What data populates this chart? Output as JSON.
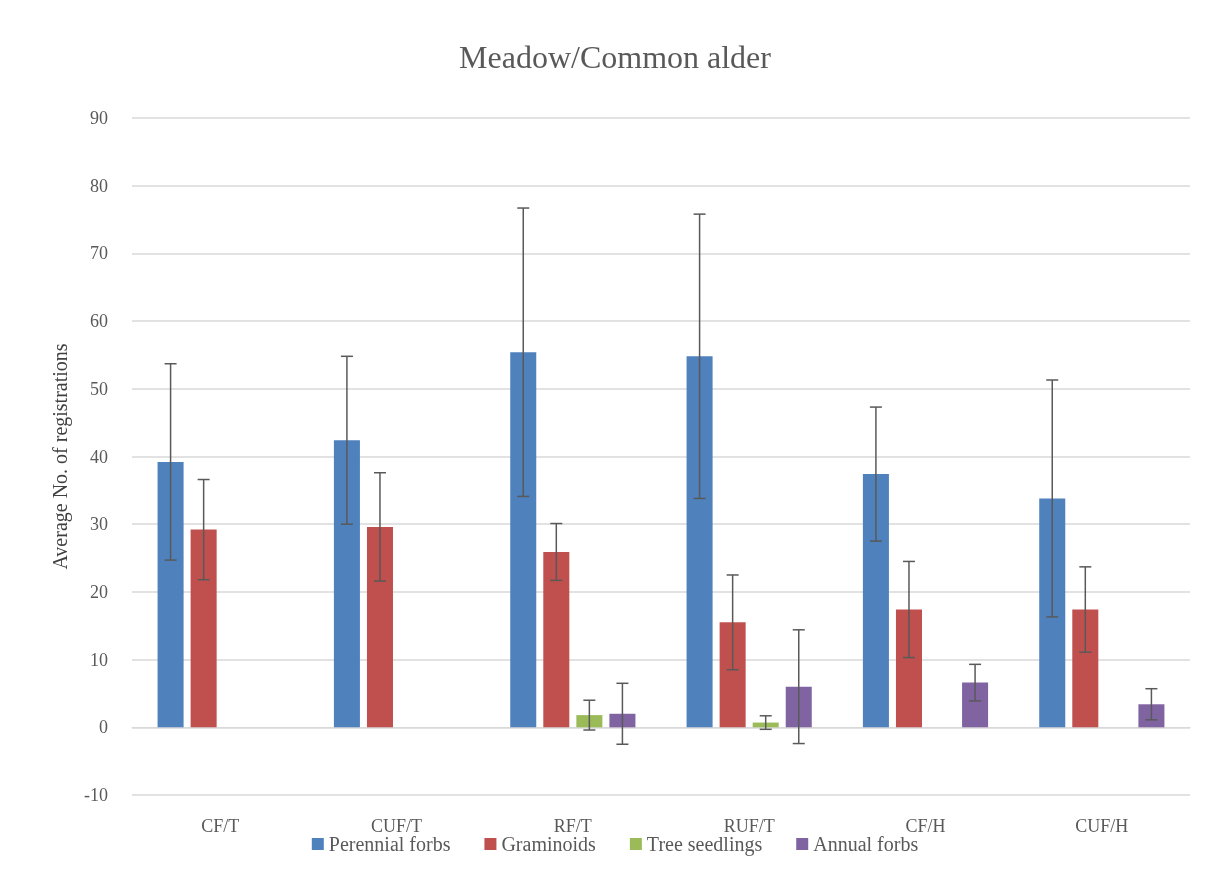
{
  "chart_data": {
    "type": "bar",
    "title": "Meadow/Common alder",
    "ylabel": "Average No. of registrations",
    "categories": [
      "CF/T",
      "CUF/T",
      "RF/T",
      "RUF/T",
      "CF/H",
      "CUF/H"
    ],
    "series": [
      {
        "name": "Perennial forbs",
        "color": "#4f81bd",
        "values": [
          39.2,
          42.4,
          55.4,
          54.8,
          37.4,
          33.8
        ],
        "errors": [
          14.5,
          12.4,
          21.3,
          21,
          9.9,
          17.5
        ]
      },
      {
        "name": "Graminoids",
        "color": "#c0504d",
        "values": [
          29.2,
          29.6,
          25.9,
          15.5,
          17.4,
          17.4
        ],
        "errors": [
          7.4,
          8,
          4.2,
          7,
          7.1,
          6.3
        ]
      },
      {
        "name": "Tree seedlings",
        "color": "#9bbb59",
        "values": [
          0,
          0,
          1.8,
          0.7,
          0,
          0
        ],
        "errors": [
          null,
          null,
          2.2,
          1,
          null,
          null
        ]
      },
      {
        "name": "Annual forbs",
        "color": "#8064a2",
        "values": [
          0,
          0,
          2.0,
          6.0,
          6.6,
          3.4
        ],
        "errors": [
          null,
          null,
          4.5,
          8.4,
          2.7,
          2.3
        ]
      }
    ],
    "ylim": [
      -10,
      90
    ],
    "yticks": [
      -10,
      0,
      10,
      20,
      30,
      40,
      50,
      60,
      70,
      80,
      90
    ],
    "grid": "y",
    "legend": "bottom"
  }
}
